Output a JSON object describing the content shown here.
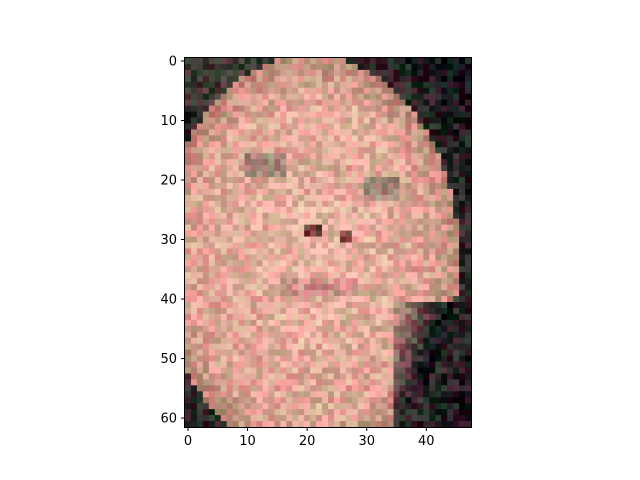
{
  "image_plot": {
    "description_shown": "",
    "image_content": "pixelated-face-photo",
    "image_size": {
      "columns": 48,
      "rows": 62
    },
    "x_axis": {
      "range": [
        -0.5,
        47.5
      ],
      "ticks": [
        {
          "value": 0,
          "label": "0"
        },
        {
          "value": 10,
          "label": "10"
        },
        {
          "value": 20,
          "label": "20"
        },
        {
          "value": 30,
          "label": "30"
        },
        {
          "value": 40,
          "label": "40"
        }
      ]
    },
    "y_axis": {
      "range": [
        -0.5,
        61.5
      ],
      "inverted": true,
      "ticks": [
        {
          "value": 0,
          "label": "0"
        },
        {
          "value": 10,
          "label": "10"
        },
        {
          "value": 20,
          "label": "20"
        },
        {
          "value": 30,
          "label": "30"
        },
        {
          "value": 40,
          "label": "40"
        },
        {
          "value": 50,
          "label": "50"
        },
        {
          "value": 60,
          "label": "60"
        }
      ]
    },
    "palette": {
      "skin": "#d8a293",
      "skin_highlight": "#e8b8a6",
      "shadow": "#a47c6a",
      "background_dark": "#10111a",
      "hair_dark": "#2c2b2a",
      "eyes": "#6b6b5e",
      "mouth": "#b97478"
    }
  }
}
